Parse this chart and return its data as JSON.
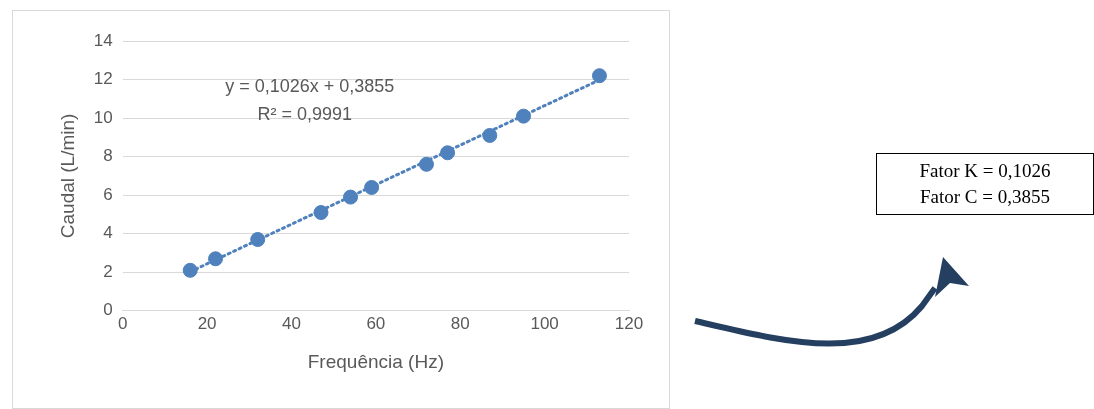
{
  "chart_data": {
    "type": "scatter",
    "xlabel": "Frequência (Hz)",
    "ylabel": "Caudal (L/min)",
    "xlim": [
      0,
      120
    ],
    "xticks": [
      0,
      20,
      40,
      60,
      80,
      100,
      120
    ],
    "ylim": [
      0,
      14
    ],
    "yticks": [
      0,
      2,
      4,
      6,
      8,
      10,
      12,
      14
    ],
    "grid": "y",
    "legend": false,
    "marker": "circle",
    "annotations": [
      "y = 0,1026x + 0,3855",
      "R² = 0,9991",
      "Fator K = 0,1026",
      "Fator C = 0,3855"
    ],
    "series": [
      {
        "color": "#4f81bd",
        "x": [
          16,
          22,
          32,
          47,
          54,
          59,
          72,
          77,
          87,
          95,
          113
        ],
        "values": [
          2.1,
          2.7,
          3.7,
          5.1,
          5.9,
          6.4,
          7.6,
          8.2,
          9.1,
          10.1,
          12.2
        ]
      },
      {
        "type": "line",
        "color": "#4f81bd",
        "line_style": "dotted",
        "marker": "none",
        "x": [
          16,
          113
        ],
        "values": [
          2.03,
          11.98
        ]
      }
    ]
  }
}
